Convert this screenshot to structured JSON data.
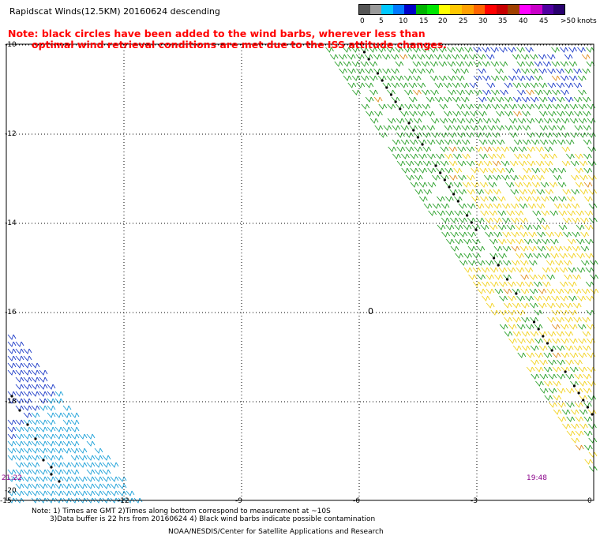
{
  "header": {
    "title": "Rapidscat Winds(12.5KM) 20160624 descending",
    "note_line1": "Note: black circles have been added to the wind barbs, wherever less than",
    "note_line2": "optimal wind retrieval conditions are met due to the ISS attitude changes."
  },
  "color_scale": {
    "unit": "knots",
    "labels": [
      "0",
      "5",
      "10",
      "15",
      "20",
      "25",
      "30",
      "35",
      "40",
      "45",
      ">50"
    ],
    "colors": [
      "#555555",
      "#9a9a9a",
      "#00c8ff",
      "#0078ff",
      "#0000c8",
      "#00b400",
      "#00e600",
      "#ffff00",
      "#ffc800",
      "#ffa000",
      "#ff6400",
      "#ff0000",
      "#c80000",
      "#a04000",
      "#ff00ff",
      "#c800c8",
      "#5000a0",
      "#28006e"
    ]
  },
  "map": {
    "lat_labels": [
      "-10",
      "-12",
      "-14",
      "-16",
      "-18",
      "-20"
    ],
    "lon_labels": [
      "-15",
      "-12",
      "-9",
      "-6",
      "-3",
      "0"
    ],
    "lat_range": [
      -20.5,
      -10
    ],
    "lon_range": [
      -15,
      0
    ],
    "island_label": "0",
    "time_labels": [
      "21:22",
      "19:48"
    ]
  },
  "footer": {
    "note_line1": "Note: 1) Times are GMT 2)Times along bottom correspond to measurement at ~10S",
    "note_line2": "3)Data buffer is 22 hrs from 20160624 4) Black wind barbs indicate possible contamination",
    "credit": "NOAA/NESDIS/Center for Satellite Applications and Research"
  }
}
